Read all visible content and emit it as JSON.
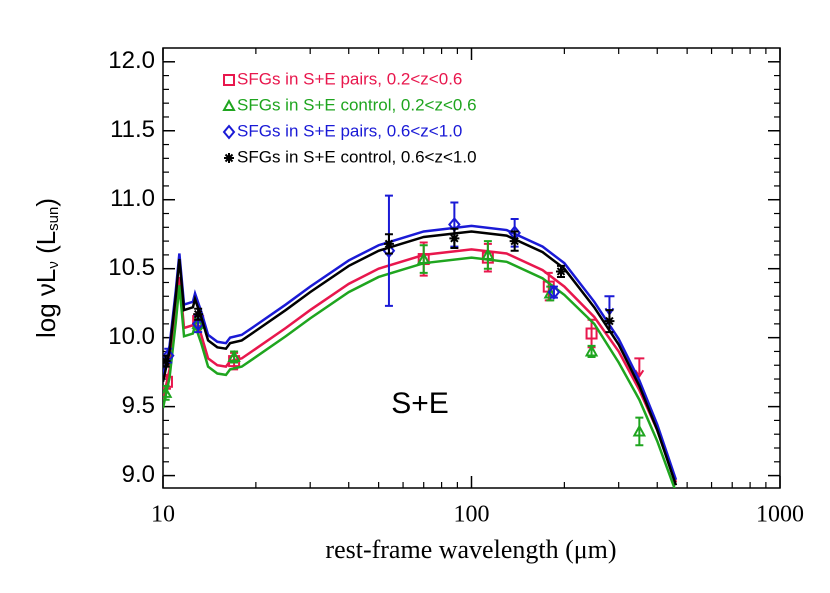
{
  "chart_data": {
    "type": "scatter",
    "xlabel": "rest-frame wavelength (μm)",
    "ylabel": [
      "log νL",
      "ν",
      " (L",
      "sun",
      ")"
    ],
    "annotation": "S+E",
    "xscale": "log",
    "xlim": [
      10,
      1000
    ],
    "ylim": [
      8.91,
      12.1
    ],
    "xticks": [
      10,
      100,
      1000
    ],
    "xminor": [
      20,
      30,
      40,
      50,
      60,
      70,
      80,
      90,
      200,
      300,
      400,
      500,
      600,
      700,
      800,
      900
    ],
    "yticks": [
      {
        "value": 9,
        "label": "9.0"
      },
      9.5,
      {
        "value": 10,
        "label": "10.0"
      },
      10.5,
      {
        "value": 11,
        "label": "11.0"
      },
      11.5,
      {
        "value": 12,
        "label": "12.0"
      }
    ],
    "yminor": [
      9.1,
      9.2,
      9.3,
      9.4,
      9.6,
      9.7,
      9.8,
      9.9,
      10.1,
      10.2,
      10.3,
      10.4,
      10.6,
      10.7,
      10.8,
      10.9,
      11.1,
      11.2,
      11.3,
      11.4,
      11.6,
      11.7,
      11.8,
      11.9
    ],
    "model_x": [
      10,
      10.5,
      11,
      11.3,
      11.7,
      12.5,
      12.7,
      13.3,
      14,
      15,
      16,
      16.5,
      18,
      20,
      25,
      30,
      40,
      50,
      70,
      100,
      130,
      170,
      200,
      250,
      300,
      350,
      400,
      460
    ],
    "series": [
      {
        "name": "SFGs in S+E pairs, 0.2<z<0.6",
        "color": "#e8174d",
        "marker": "square",
        "x": [
          10.3,
          13,
          17,
          70,
          113,
          178,
          245
        ],
        "values": [
          9.68,
          10.12,
          9.83,
          10.57,
          10.58,
          10.37,
          10.03
        ],
        "errors": [
          0.05,
          0.05,
          0.06,
          0.12,
          0.1,
          0.1,
          0.1
        ],
        "upper_x": [
          350
        ],
        "upper_values": [
          9.85
        ],
        "model": [
          9.55,
          9.77,
          10.17,
          10.44,
          10.07,
          10.09,
          10.15,
          10.02,
          9.85,
          9.8,
          9.79,
          9.83,
          9.85,
          9.92,
          10.07,
          10.2,
          10.39,
          10.5,
          10.6,
          10.64,
          10.61,
          10.49,
          10.37,
          10.15,
          9.9,
          9.62,
          9.33,
          8.95
        ]
      },
      {
        "name": "SFGs in S+E control, 0.2<z<0.6",
        "color": "#1fa51f",
        "marker": "triangle",
        "x": [
          10.2,
          13,
          17,
          70,
          113,
          180,
          245,
          350
        ],
        "values": [
          9.6,
          10.1,
          9.86,
          10.57,
          10.6,
          10.32,
          9.9,
          9.32
        ],
        "errors": [
          0.05,
          0.04,
          0.04,
          0.1,
          0.1,
          0.05,
          0.04,
          0.1
        ],
        "upper_x": [],
        "upper_values": [],
        "model": [
          9.49,
          9.71,
          10.11,
          10.38,
          10.01,
          10.03,
          10.09,
          9.96,
          9.79,
          9.74,
          9.73,
          9.77,
          9.79,
          9.86,
          10.01,
          10.14,
          10.33,
          10.44,
          10.54,
          10.58,
          10.55,
          10.43,
          10.31,
          10.1,
          9.82,
          9.55,
          9.25,
          8.88
        ]
      },
      {
        "name": "SFGs in S+E pairs, 0.6<z<1.0",
        "color": "#1a1ad6",
        "marker": "diamond",
        "x": [
          10.4,
          13,
          54,
          88,
          138,
          185
        ],
        "values": [
          9.87,
          10.1,
          10.63,
          10.82,
          10.76,
          10.33
        ],
        "errors": [
          0.05,
          0.06,
          0.4,
          0.16,
          0.1,
          0.04
        ],
        "upper_x": [
          280
        ],
        "upper_values": [
          10.3
        ],
        "model": [
          9.72,
          9.94,
          10.34,
          10.61,
          10.24,
          10.26,
          10.32,
          10.19,
          10.02,
          9.97,
          9.96,
          10.0,
          10.02,
          10.09,
          10.24,
          10.37,
          10.56,
          10.67,
          10.77,
          10.81,
          10.78,
          10.66,
          10.54,
          10.26,
          9.99,
          9.69,
          9.37,
          8.97
        ]
      },
      {
        "name": "SFGs in S+E control, 0.6<z<1.0",
        "color": "#000000",
        "marker": "asterisk",
        "x": [
          10.2,
          13,
          54,
          88,
          138,
          195,
          280
        ],
        "values": [
          9.83,
          10.17,
          10.68,
          10.72,
          10.7,
          10.48,
          10.12
        ],
        "errors": [
          0.04,
          0.04,
          0.07,
          0.07,
          0.07,
          0.04,
          0.08
        ],
        "upper_x": [],
        "upper_values": [],
        "model": [
          9.68,
          9.9,
          10.3,
          10.57,
          10.2,
          10.22,
          10.28,
          10.15,
          9.98,
          9.93,
          9.92,
          9.96,
          9.98,
          10.05,
          10.2,
          10.33,
          10.52,
          10.63,
          10.73,
          10.77,
          10.74,
          10.62,
          10.5,
          10.22,
          9.95,
          9.65,
          9.33,
          8.93
        ]
      }
    ]
  }
}
